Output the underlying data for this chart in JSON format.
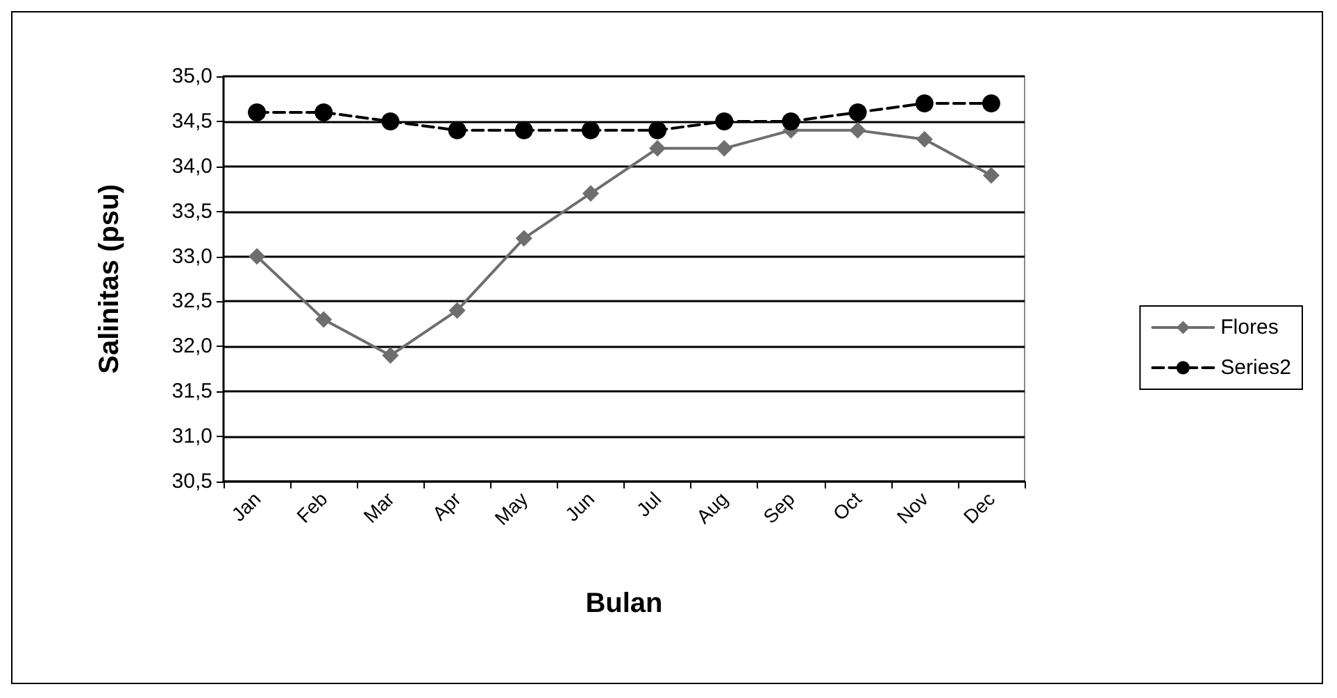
{
  "chart_data": {
    "type": "line",
    "xlabel": "Bulan",
    "ylabel": "Salinitas (psu)",
    "categories": [
      "Jan",
      "Feb",
      "Mar",
      "Apr",
      "May",
      "Jun",
      "Jul",
      "Aug",
      "Sep",
      "Oct",
      "Nov",
      "Dec"
    ],
    "series": [
      {
        "name": "Flores",
        "color": "#6e6e6e",
        "marker": "diamond",
        "line_style": "solid",
        "values": [
          33.0,
          32.3,
          31.9,
          32.4,
          33.2,
          33.7,
          34.2,
          34.2,
          34.4,
          34.4,
          34.3,
          33.9
        ]
      },
      {
        "name": "Series2",
        "color": "#000000",
        "marker": "circle",
        "line_style": "dashed",
        "values": [
          34.6,
          34.6,
          34.5,
          34.4,
          34.4,
          34.4,
          34.4,
          34.5,
          34.5,
          34.6,
          34.7,
          34.7
        ]
      }
    ],
    "ylim": [
      30.5,
      35.0
    ],
    "yticks": [
      {
        "value": 30.5,
        "label": "30,5"
      },
      {
        "value": 31.0,
        "label": "31,0"
      },
      {
        "value": 31.5,
        "label": "31,5"
      },
      {
        "value": 32.0,
        "label": "32,0"
      },
      {
        "value": 32.5,
        "label": "32,5"
      },
      {
        "value": 33.0,
        "label": "33,0"
      },
      {
        "value": 33.5,
        "label": "33,5"
      },
      {
        "value": 34.0,
        "label": "34,0"
      },
      {
        "value": 34.5,
        "label": "34,5"
      },
      {
        "value": 35.0,
        "label": "35,0"
      }
    ],
    "grid": "y",
    "legend": "right"
  }
}
